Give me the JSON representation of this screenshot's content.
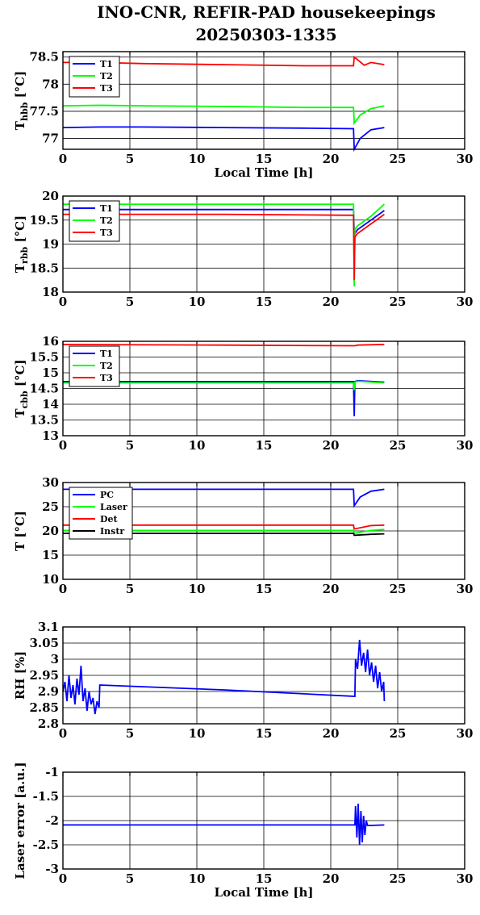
{
  "page": {
    "title_line1": "INO-CNR, REFIR-PAD housekeepings",
    "title_line2": "20250303-1335"
  },
  "colors": {
    "blue": "#0000ff",
    "green": "#00ff00",
    "red": "#ff0000",
    "black": "#000000"
  },
  "chart_data": [
    {
      "type": "line",
      "ylabel_main": "T",
      "ylabel_sub": "hbb",
      "ylabel_unit": " [°C]",
      "xlabel": "Local Time [h]",
      "xlim": [
        0,
        30
      ],
      "ylim": [
        76.8,
        78.6
      ],
      "xticks": [
        "0",
        "5",
        "10",
        "15",
        "20",
        "25",
        "30"
      ],
      "yticks": [
        {
          "value": 77,
          "label": "77"
        },
        {
          "value": 77.5,
          "label": "77.5"
        },
        {
          "value": 78,
          "label": "78"
        },
        {
          "value": 78.5,
          "label": "78.5"
        }
      ],
      "legend": "top-left",
      "series": [
        {
          "name": "T1",
          "color": "#0000ff",
          "x": [
            0,
            2.7,
            6,
            12,
            18,
            21.7,
            21.75,
            22.2,
            23,
            24
          ],
          "y": [
            77.2,
            77.21,
            77.21,
            77.2,
            77.19,
            77.18,
            76.8,
            77.0,
            77.16,
            77.2
          ]
        },
        {
          "name": "T2",
          "color": "#00ff00",
          "x": [
            0,
            2.7,
            6,
            12,
            18,
            21.7,
            21.75,
            22.2,
            23,
            24
          ],
          "y": [
            77.6,
            77.61,
            77.6,
            77.59,
            77.57,
            77.57,
            77.28,
            77.43,
            77.55,
            77.6
          ]
        },
        {
          "name": "T3",
          "color": "#ff0000",
          "x": [
            0,
            2.7,
            6,
            12,
            18,
            21.7,
            21.75,
            22.5,
            23,
            24
          ],
          "y": [
            78.4,
            78.4,
            78.38,
            78.36,
            78.34,
            78.34,
            78.5,
            78.35,
            78.4,
            78.36
          ]
        }
      ]
    },
    {
      "type": "line",
      "ylabel_main": "T",
      "ylabel_sub": "rbb",
      "ylabel_unit": " [°C]",
      "xlim": [
        0,
        30
      ],
      "ylim": [
        18,
        20
      ],
      "xticks": [
        "0",
        "5",
        "10",
        "15",
        "20",
        "25",
        "30"
      ],
      "yticks": [
        {
          "value": 18,
          "label": "18"
        },
        {
          "value": 18.5,
          "label": "18.5"
        },
        {
          "value": 19,
          "label": "19"
        },
        {
          "value": 19.5,
          "label": "19.5"
        },
        {
          "value": 20,
          "label": "20"
        }
      ],
      "legend": "top-left",
      "series": [
        {
          "name": "T1",
          "color": "#0000ff",
          "x": [
            0,
            12,
            21.7,
            21.75,
            22,
            23,
            24
          ],
          "y": [
            19.72,
            19.72,
            19.72,
            19.2,
            19.3,
            19.5,
            19.7
          ]
        },
        {
          "name": "T2",
          "color": "#00ff00",
          "x": [
            0,
            12,
            21.7,
            21.75,
            21.8,
            22,
            23,
            24
          ],
          "y": [
            19.83,
            19.83,
            19.83,
            18.12,
            19.3,
            19.38,
            19.58,
            19.83
          ]
        },
        {
          "name": "T3",
          "color": "#ff0000",
          "x": [
            0,
            12,
            21.7,
            21.75,
            21.8,
            22,
            23,
            24
          ],
          "y": [
            19.62,
            19.62,
            19.6,
            18.25,
            19.15,
            19.22,
            19.42,
            19.62
          ]
        }
      ]
    },
    {
      "type": "line",
      "ylabel_main": "T",
      "ylabel_sub": "cbb",
      "ylabel_unit": " [°C]",
      "xlim": [
        0,
        30
      ],
      "ylim": [
        13,
        16
      ],
      "xticks": [
        "0",
        "5",
        "10",
        "15",
        "20",
        "25",
        "30"
      ],
      "yticks": [
        {
          "value": 13,
          "label": "13"
        },
        {
          "value": 13.5,
          "label": "13.5"
        },
        {
          "value": 14,
          "label": "14"
        },
        {
          "value": 14.5,
          "label": "14.5"
        },
        {
          "value": 15,
          "label": "15"
        },
        {
          "value": 15.5,
          "label": "15.5"
        },
        {
          "value": 16,
          "label": "16"
        }
      ],
      "legend": "top-left",
      "series": [
        {
          "name": "T1",
          "color": "#0000ff",
          "x": [
            0,
            12,
            21.7,
            21.75,
            21.8,
            22,
            24
          ],
          "y": [
            14.72,
            14.72,
            14.72,
            13.62,
            14.72,
            14.75,
            14.7
          ]
        },
        {
          "name": "T2",
          "color": "#00ff00",
          "x": [
            0,
            12,
            21.7,
            21.75,
            21.8,
            22,
            24
          ],
          "y": [
            14.68,
            14.68,
            14.68,
            14.45,
            14.7,
            14.73,
            14.68
          ]
        },
        {
          "name": "T3",
          "color": "#ff0000",
          "x": [
            0,
            12,
            21.7,
            21.8,
            22,
            24
          ],
          "y": [
            15.9,
            15.88,
            15.86,
            15.86,
            15.88,
            15.9
          ]
        }
      ]
    },
    {
      "type": "line",
      "ylabel_main": "T [°C]",
      "ylabel_sub": "",
      "ylabel_unit": "",
      "xlim": [
        0,
        30
      ],
      "ylim": [
        10,
        30
      ],
      "xticks": [
        "0",
        "5",
        "10",
        "15",
        "20",
        "25",
        "30"
      ],
      "yticks": [
        {
          "value": 10,
          "label": "10"
        },
        {
          "value": 15,
          "label": "15"
        },
        {
          "value": 20,
          "label": "20"
        },
        {
          "value": 25,
          "label": "25"
        },
        {
          "value": 30,
          "label": "30"
        }
      ],
      "legend": "top-left",
      "series": [
        {
          "name": "PC",
          "color": "#0000ff",
          "x": [
            0,
            12,
            21.7,
            21.75,
            22.2,
            23,
            24
          ],
          "y": [
            28.6,
            28.6,
            28.6,
            25.2,
            27.0,
            28.2,
            28.6
          ]
        },
        {
          "name": "Laser",
          "color": "#00ff00",
          "x": [
            0,
            12,
            21.7,
            21.75,
            23,
            24
          ],
          "y": [
            20.1,
            20.1,
            20.1,
            19.5,
            20.1,
            20.3
          ]
        },
        {
          "name": "Det",
          "color": "#ff0000",
          "x": [
            0,
            12,
            21.7,
            21.75,
            23,
            24
          ],
          "y": [
            21.2,
            21.2,
            21.2,
            20.4,
            21.1,
            21.2
          ]
        },
        {
          "name": "Instr",
          "color": "#000000",
          "x": [
            0,
            12,
            21.7,
            21.75,
            23,
            24
          ],
          "y": [
            19.5,
            19.5,
            19.5,
            19.1,
            19.3,
            19.4
          ]
        }
      ]
    },
    {
      "type": "line",
      "ylabel_main": "RH [%]",
      "ylabel_sub": "",
      "ylabel_unit": "",
      "xlim": [
        0,
        30
      ],
      "ylim": [
        2.8,
        3.1
      ],
      "xticks": [
        "0",
        "5",
        "10",
        "15",
        "20",
        "25",
        "30"
      ],
      "yticks": [
        {
          "value": 2.8,
          "label": "2.8"
        },
        {
          "value": 2.85,
          "label": "2.85"
        },
        {
          "value": 2.9,
          "label": "2.9"
        },
        {
          "value": 2.95,
          "label": "2.95"
        },
        {
          "value": 3,
          "label": "3"
        },
        {
          "value": 3.05,
          "label": "3.05"
        },
        {
          "value": 3.1,
          "label": "3.1"
        }
      ],
      "series": [
        {
          "color": "#0000ff",
          "x": [
            0,
            0.15,
            0.3,
            0.45,
            0.6,
            0.75,
            0.9,
            1.05,
            1.2,
            1.35,
            1.5,
            1.65,
            1.8,
            1.95,
            2.1,
            2.25,
            2.4,
            2.55,
            2.7,
            2.75,
            12,
            21.8,
            21.85,
            22.0,
            22.15,
            22.3,
            22.45,
            22.6,
            22.75,
            22.9,
            23.05,
            23.2,
            23.35,
            23.5,
            23.65,
            23.8,
            23.95,
            24.0
          ],
          "y": [
            2.9,
            2.93,
            2.87,
            2.95,
            2.88,
            2.92,
            2.86,
            2.94,
            2.89,
            2.98,
            2.87,
            2.91,
            2.84,
            2.9,
            2.86,
            2.88,
            2.83,
            2.87,
            2.85,
            2.92,
            2.905,
            2.885,
            3.0,
            2.97,
            3.06,
            2.98,
            3.02,
            2.96,
            3.03,
            2.95,
            2.99,
            2.93,
            2.98,
            2.91,
            2.96,
            2.9,
            2.93,
            2.87
          ]
        }
      ]
    },
    {
      "type": "line",
      "ylabel_main": "Laser error [a.u.]",
      "ylabel_sub": "",
      "ylabel_unit": "",
      "xlabel": "Local Time [h]",
      "xlim": [
        0,
        30
      ],
      "ylim": [
        -3,
        -1
      ],
      "xticks": [
        "0",
        "5",
        "10",
        "15",
        "20",
        "25",
        "30"
      ],
      "yticks": [
        {
          "value": -3,
          "label": "-3"
        },
        {
          "value": -2.5,
          "label": "-2.5"
        },
        {
          "value": -2,
          "label": "-2"
        },
        {
          "value": -1.5,
          "label": "-1.5"
        },
        {
          "value": -1,
          "label": "-1"
        }
      ],
      "series": [
        {
          "color": "#0000ff",
          "x": [
            0,
            2.7,
            12,
            21.8,
            21.85,
            21.95,
            22.05,
            22.15,
            22.25,
            22.35,
            22.45,
            22.55,
            22.65,
            22.75,
            23,
            24
          ],
          "y": [
            -2.09,
            -2.09,
            -2.09,
            -2.09,
            -1.7,
            -2.35,
            -1.65,
            -2.5,
            -1.8,
            -2.45,
            -1.9,
            -2.3,
            -2.0,
            -2.1,
            -2.1,
            -2.09
          ]
        }
      ]
    }
  ]
}
